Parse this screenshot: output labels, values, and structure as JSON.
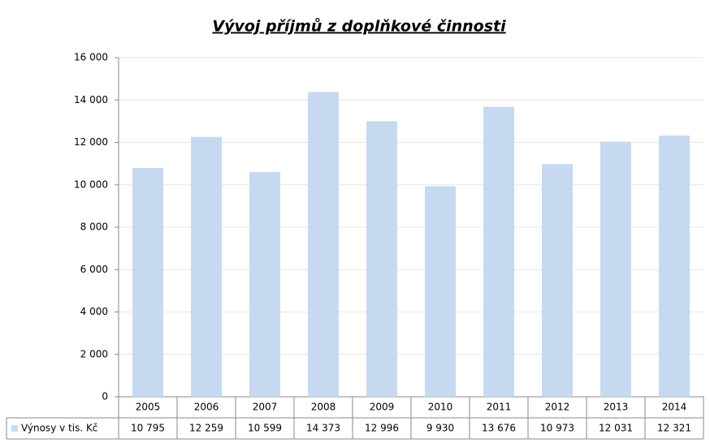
{
  "chart_data": {
    "type": "bar",
    "title": "Vývoj příjmů z doplňkové činnosti",
    "categories": [
      "2005",
      "2006",
      "2007",
      "2008",
      "2009",
      "2010",
      "2011",
      "2012",
      "2013",
      "2014"
    ],
    "series": [
      {
        "name": "Výnosy v tis. Kč",
        "color": "#c6d9f1",
        "values": [
          10795,
          12259,
          10599,
          14373,
          12996,
          9930,
          13676,
          10973,
          12031,
          12321
        ],
        "value_labels": [
          "10 795",
          "12 259",
          "10 599",
          "14 373",
          "12 996",
          "9 930",
          "13 676",
          "10 973",
          "12 031",
          "12 321"
        ]
      }
    ],
    "ylim": [
      0,
      16000
    ],
    "yticks": [
      0,
      {
        "value": 2000,
        "label": "2 000"
      },
      {
        "value": 4000,
        "label": "4 000"
      },
      {
        "value": 6000,
        "label": "6 000"
      },
      {
        "value": 8000,
        "label": "8 000"
      },
      {
        "value": 10000,
        "label": "10 000"
      },
      {
        "value": 12000,
        "label": "12 000"
      },
      {
        "value": 14000,
        "label": "14 000"
      },
      {
        "value": 16000,
        "label": "16 000"
      }
    ],
    "grid": true
  }
}
